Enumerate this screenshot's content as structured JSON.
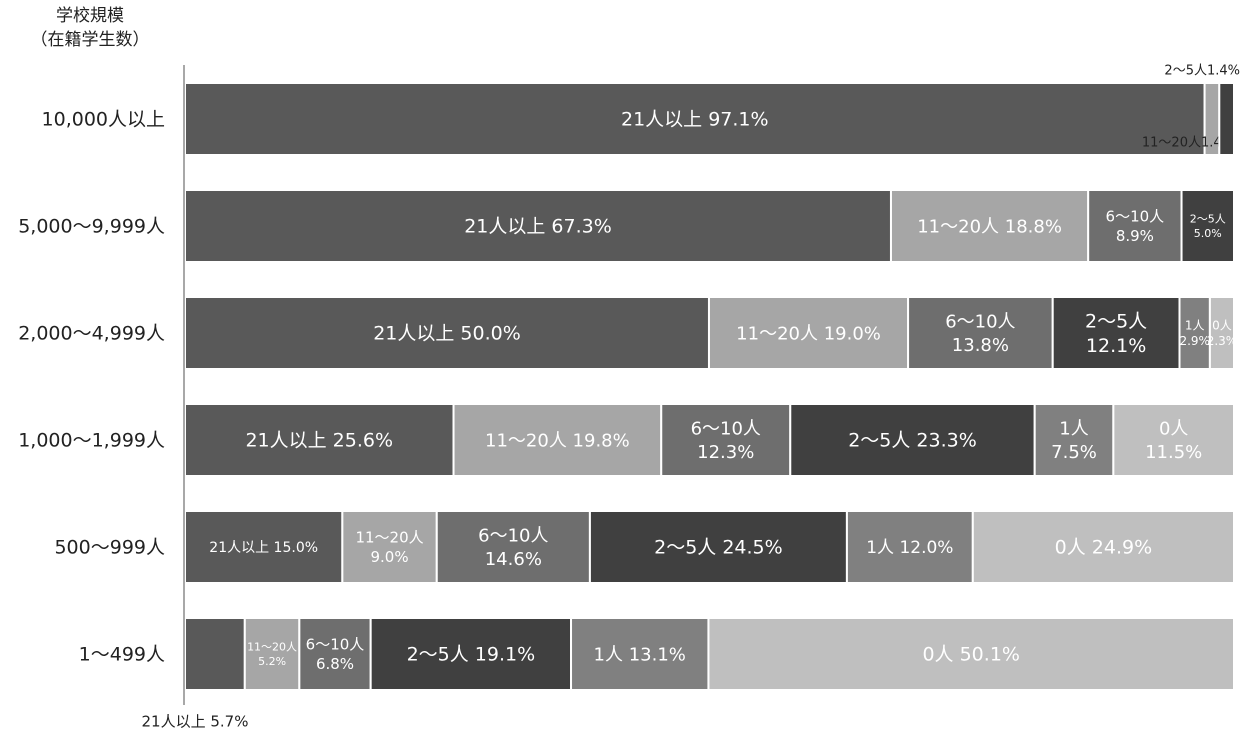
{
  "chart_data": {
    "type": "bar",
    "stacked": true,
    "orientation": "horizontal",
    "ylabel": [
      "学校規模",
      "（在籍学生数）"
    ],
    "categories": [
      "10,000人以上",
      "5,000〜9,999人",
      "2,000〜4,999人",
      "1,000〜1,999人",
      "500〜999人",
      "1〜499人"
    ],
    "series": [
      {
        "name": "21人以上",
        "color": "#595959",
        "values": [
          97.1,
          67.3,
          50.0,
          25.6,
          15.0,
          5.7
        ]
      },
      {
        "name": "11〜20人",
        "color": "#a6a6a6",
        "values": [
          1.4,
          18.8,
          19.0,
          19.8,
          9.0,
          5.2
        ]
      },
      {
        "name": "6〜10人",
        "color": "#6e6e6e",
        "values": [
          0.0,
          8.9,
          13.8,
          12.3,
          14.6,
          6.8
        ]
      },
      {
        "name": "2〜5人",
        "color": "#404040",
        "values": [
          1.4,
          5.0,
          12.1,
          23.3,
          24.5,
          19.1
        ]
      },
      {
        "name": "1人",
        "color": "#808080",
        "values": [
          0.0,
          0.0,
          2.9,
          7.5,
          12.0,
          13.1
        ]
      },
      {
        "name": "0人",
        "color": "#bfbfbf",
        "values": [
          0.0,
          0.0,
          2.3,
          11.5,
          24.9,
          50.1
        ]
      }
    ],
    "xlim": [
      0,
      100
    ],
    "labels": [
      [
        {
          "text": "21人以上 97.1%",
          "style": "inside",
          "size": 19,
          "color": "#ffffff"
        },
        {
          "text": "11〜20人1.4%",
          "style": "below",
          "size": 13,
          "color": "#222222"
        },
        null,
        {
          "text": "2〜5人1.4%",
          "style": "above",
          "size": 13,
          "color": "#222222"
        },
        null,
        null
      ],
      [
        {
          "text": "21人以上 67.3%",
          "style": "inside",
          "size": 19,
          "color": "#ffffff"
        },
        {
          "text": "11〜20人 18.8%",
          "style": "inside",
          "size": 18,
          "color": "#ffffff"
        },
        {
          "text": "6〜10人\n8.9%",
          "style": "inside",
          "size": 15,
          "color": "#ffffff"
        },
        {
          "text": "2〜5人\n5.0%",
          "style": "inside",
          "size": 11,
          "color": "#ffffff"
        },
        null,
        null
      ],
      [
        {
          "text": "21人以上 50.0%",
          "style": "inside",
          "size": 19,
          "color": "#ffffff"
        },
        {
          "text": "11〜20人 19.0%",
          "style": "inside",
          "size": 18,
          "color": "#ffffff"
        },
        {
          "text": "6〜10人\n13.8%",
          "style": "inside",
          "size": 18,
          "color": "#ffffff"
        },
        {
          "text": "2〜5人\n12.1%",
          "style": "inside",
          "size": 19,
          "color": "#ffffff"
        },
        {
          "text": "1人\n2.9%",
          "style": "inside",
          "size": 12,
          "color": "#ffffff"
        },
        {
          "text": "0人\n2.3%",
          "style": "inside",
          "size": 12,
          "color": "#ffffff"
        }
      ],
      [
        {
          "text": "21人以上 25.6%",
          "style": "inside",
          "size": 19,
          "color": "#ffffff"
        },
        {
          "text": "11〜20人 19.8%",
          "style": "inside",
          "size": 18,
          "color": "#ffffff"
        },
        {
          "text": "6〜10人\n12.3%",
          "style": "inside",
          "size": 18,
          "color": "#ffffff"
        },
        {
          "text": "2〜5人 23.3%",
          "style": "inside",
          "size": 19,
          "color": "#ffffff"
        },
        {
          "text": "1人\n7.5%",
          "style": "inside",
          "size": 18,
          "color": "#ffffff"
        },
        {
          "text": "0人\n11.5%",
          "style": "inside",
          "size": 18,
          "color": "#ffffff"
        }
      ],
      [
        {
          "text": "21人以上 15.0%",
          "style": "inside",
          "size": 14,
          "color": "#ffffff"
        },
        {
          "text": "11〜20人\n9.0%",
          "style": "inside",
          "size": 15,
          "color": "#ffffff"
        },
        {
          "text": "6〜10人\n14.6%",
          "style": "inside",
          "size": 18,
          "color": "#ffffff"
        },
        {
          "text": "2〜5人 24.5%",
          "style": "inside",
          "size": 19,
          "color": "#ffffff"
        },
        {
          "text": "1人 12.0%",
          "style": "inside",
          "size": 17,
          "color": "#ffffff"
        },
        {
          "text": "0人 24.9%",
          "style": "inside",
          "size": 19,
          "color": "#ffffff"
        }
      ],
      [
        {
          "text": "21人以上 5.7%",
          "style": "under-axis",
          "size": 15,
          "color": "#222222"
        },
        {
          "text": "11〜20人\n5.2%",
          "style": "inside",
          "size": 11,
          "color": "#ffffff"
        },
        {
          "text": "6〜10人\n6.8%",
          "style": "inside",
          "size": 15,
          "color": "#ffffff"
        },
        {
          "text": "2〜5人 19.1%",
          "style": "inside",
          "size": 19,
          "color": "#ffffff"
        },
        {
          "text": "1人 13.1%",
          "style": "inside",
          "size": 18,
          "color": "#ffffff"
        },
        {
          "text": "0人 50.1%",
          "style": "inside",
          "size": 19,
          "color": "#ffffff"
        }
      ]
    ],
    "grid": false,
    "legend": "none"
  }
}
